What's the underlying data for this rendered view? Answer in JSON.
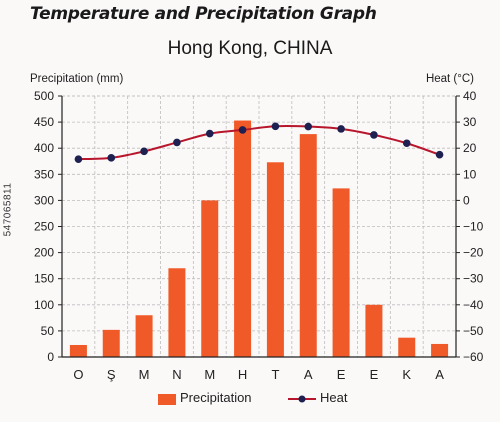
{
  "header": {
    "title": "Temperature and Precipitation Graph"
  },
  "side_text": "547065811",
  "colors": {
    "bar": "#f05a28",
    "line": "#b8162c",
    "marker": "#1d2050",
    "grid": "#bdbdbd",
    "axis": "#222222"
  },
  "chart_data": {
    "type": "bar+line",
    "title": "Hong Kong, CHINA",
    "ylabel": "Precipitation (mm)",
    "y2label": "Heat (°C)",
    "categories": [
      "O",
      "Ş",
      "M",
      "N",
      "M",
      "H",
      "T",
      "A",
      "E",
      "E",
      "K",
      "A"
    ],
    "ylim": [
      0,
      500
    ],
    "yticks": [
      0,
      50,
      100,
      150,
      200,
      250,
      300,
      350,
      400,
      450,
      500
    ],
    "y2lim": [
      -60,
      40
    ],
    "y2ticks": [
      -60,
      -50,
      -40,
      -30,
      -20,
      -10,
      0,
      10,
      20,
      30,
      40
    ],
    "grid": true,
    "legend": "bottom",
    "series": [
      {
        "name": "Precipitation",
        "type": "bar",
        "axis": "left",
        "values": [
          23,
          52,
          80,
          170,
          300,
          453,
          373,
          427,
          323,
          100,
          37,
          25
        ]
      },
      {
        "name": "Heat",
        "type": "line",
        "axis": "right",
        "values": [
          15.8,
          16.3,
          18.8,
          22.2,
          25.6,
          27.0,
          28.4,
          28.3,
          27.4,
          25.1,
          21.9,
          17.5
        ]
      }
    ]
  }
}
